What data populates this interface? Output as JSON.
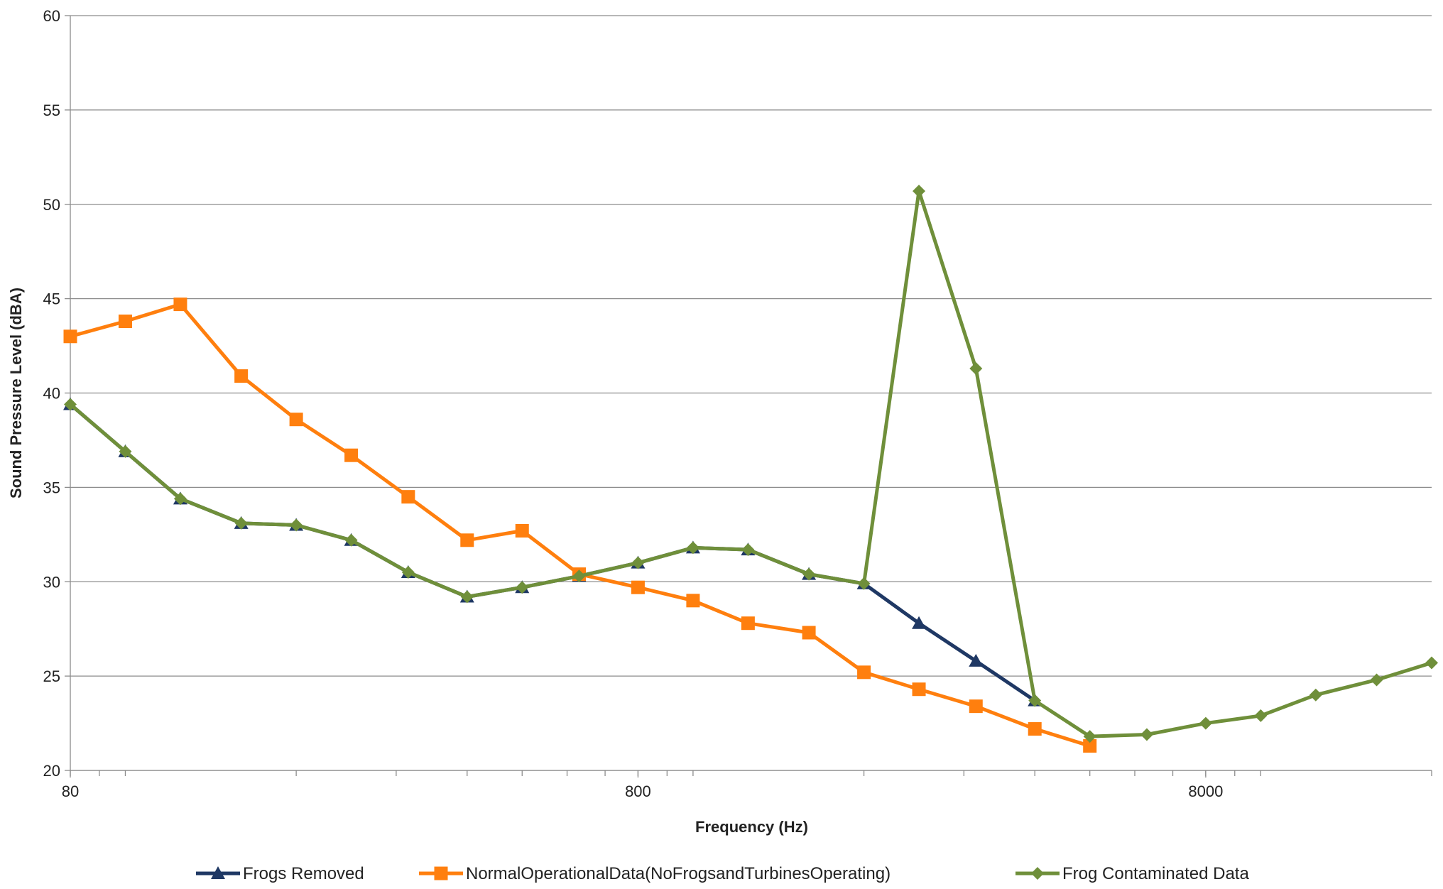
{
  "chart_data": {
    "type": "line",
    "xlabel": "Frequency (Hz)",
    "ylabel": "Sound Pressure Level (dBA)",
    "x_scale": "log",
    "xlim": [
      80,
      20000
    ],
    "ylim": [
      20,
      60
    ],
    "y_ticks": [
      20,
      25,
      30,
      35,
      40,
      45,
      50,
      55,
      60
    ],
    "x_tick_labels": [
      {
        "value": 80,
        "label": "80"
      },
      {
        "value": 800,
        "label": "800"
      },
      {
        "value": 8000,
        "label": "8000"
      }
    ],
    "grid": "horizontal",
    "legend_position": "bottom",
    "x": [
      80,
      100,
      125,
      160,
      200,
      250,
      315,
      400,
      500,
      630,
      800,
      1000,
      1250,
      1600,
      2000,
      2500,
      3150,
      4000,
      5000,
      6300,
      8000,
      10000,
      12500,
      16000,
      20000
    ],
    "series": [
      {
        "name": "Frogs Removed",
        "color": "#1f3864",
        "marker": "triangle",
        "values": [
          39.4,
          36.9,
          34.4,
          33.1,
          33.0,
          32.2,
          30.5,
          29.2,
          29.7,
          30.3,
          31.0,
          31.8,
          31.7,
          30.4,
          29.9,
          27.8,
          25.8,
          23.7,
          null,
          null,
          null,
          null,
          null,
          null,
          null
        ]
      },
      {
        "name": "NormalOperationalData(NoFrogsandTurbinesOperating)",
        "color": "#ff7f0e",
        "marker": "square",
        "values": [
          43.0,
          43.8,
          44.7,
          40.9,
          38.6,
          36.7,
          34.5,
          32.2,
          32.7,
          30.4,
          29.7,
          29.0,
          27.8,
          27.3,
          25.2,
          24.3,
          23.4,
          22.2,
          21.3,
          null,
          null,
          null,
          null,
          null,
          null
        ]
      },
      {
        "name": "Frog Contaminated Data",
        "color": "#6f8f3a",
        "marker": "diamond",
        "values": [
          39.4,
          36.9,
          34.4,
          33.1,
          33.0,
          32.2,
          30.5,
          29.2,
          29.7,
          30.3,
          31.0,
          31.8,
          31.7,
          30.4,
          29.9,
          50.7,
          41.3,
          23.7,
          21.8,
          21.9,
          22.5,
          22.9,
          24.0,
          24.8,
          25.7
        ]
      }
    ]
  }
}
